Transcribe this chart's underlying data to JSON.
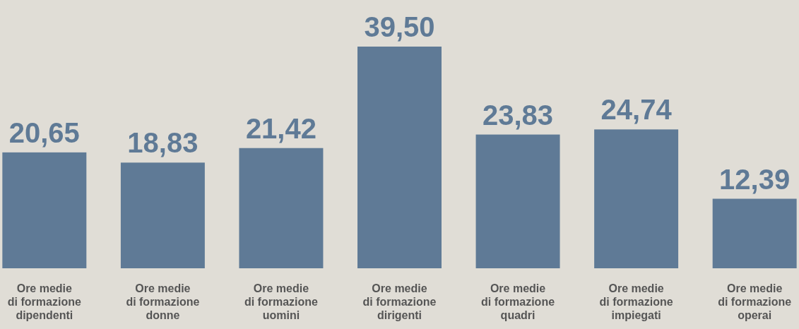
{
  "chart_data": {
    "type": "bar",
    "categories": [
      "Ore medie\ndi formazione\ndipendenti",
      "Ore medie\ndi formazione\ndonne",
      "Ore medie\ndi formazione\nuomini",
      "Ore medie\ndi formazione\ndirigenti",
      "Ore medie\ndi formazione\nquadri",
      "Ore medie\ndi formazione\nimpiegati",
      "Ore medie\ndi formazione\noperai"
    ],
    "values": [
      20.65,
      18.83,
      21.42,
      39.5,
      23.83,
      24.74,
      12.39
    ],
    "value_labels": [
      "20,65",
      "18,83",
      "21,42",
      "39,50",
      "23,83",
      "24,74",
      "12,39"
    ],
    "color": "#5f7a96"
  }
}
